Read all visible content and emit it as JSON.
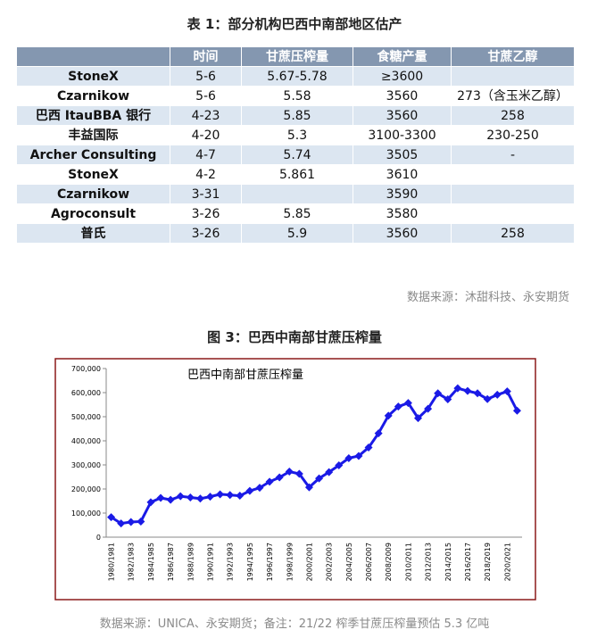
{
  "table_title": "表 1：部分机构巴西中南部地区估产",
  "table": {
    "header": [
      null,
      "时间",
      "甘蔗压榨量",
      "食糖产量",
      "甘蔗乙醇"
    ],
    "rows": [
      [
        "StoneX",
        "5-6",
        "5.67-5.78",
        "≥3600",
        null
      ],
      [
        "Czarnikow",
        "5-6",
        "5.58",
        "3560",
        "273（含玉米乙醇）"
      ],
      [
        "巴西 ItauBBA 银行",
        "4-23",
        "5.85",
        "3560",
        "258"
      ],
      [
        "丰益国际",
        "4-20",
        "5.3",
        "3100-3300",
        "230-250"
      ],
      [
        "Archer Consulting",
        "4-7",
        "5.74",
        "3505",
        "-"
      ],
      [
        "StoneX",
        "4-2",
        "5.861",
        "3610",
        null
      ],
      [
        "Czarnikow",
        "3-31",
        null,
        "3590",
        null
      ],
      [
        "Agroconsult",
        "3-26",
        "5.85",
        "3580",
        null
      ],
      [
        "普氏",
        "3-26",
        "5.9",
        "3560",
        "258"
      ]
    ]
  },
  "table_source": "数据来源：沐甜科技、永安期货",
  "figure_title": "图 3：巴西中南部甘蔗压榨量",
  "chart_data": {
    "type": "line",
    "title": "巴西中南部甘蔗压榨量",
    "categories": [
      "1980/1981",
      null,
      "1982/1983",
      null,
      "1984/1985",
      null,
      "1986/1987",
      null,
      "1988/1989",
      null,
      "1990/1991",
      null,
      "1992/1993",
      null,
      "1994/1995",
      null,
      "1996/1997",
      null,
      "1998/1999",
      null,
      "2000/2001",
      null,
      "2002/2003",
      null,
      "2004/2005",
      null,
      "2006/2007",
      null,
      "2008/2009",
      null,
      "2010/2011",
      null,
      "2012/2013",
      null,
      "2014/2015",
      null,
      "2016/2017",
      null,
      "2018/2019",
      null,
      "2020/2021",
      null
    ],
    "series": [
      {
        "name": "巴西中南部甘蔗压榨量",
        "color": "#1a1ae6",
        "values": [
          83000,
          57000,
          63000,
          65000,
          145000,
          163000,
          155000,
          170000,
          165000,
          160000,
          168000,
          178000,
          175000,
          172000,
          192000,
          205000,
          230000,
          248000,
          272000,
          263000,
          207000,
          244000,
          270000,
          298000,
          328000,
          337000,
          372000,
          431000,
          504000,
          542000,
          557000,
          494000,
          533000,
          597000,
          572000,
          618000,
          607000,
          597000,
          573000,
          591000,
          605000,
          525000
        ]
      }
    ],
    "ylim": [
      0,
      700000
    ],
    "yticks": [
      0,
      {
        "value": 100000,
        "label": "100,000"
      },
      {
        "value": 200000,
        "label": "200,000"
      },
      {
        "value": 300000,
        "label": "300,000"
      },
      {
        "value": 400000,
        "label": "400,000"
      },
      {
        "value": 500000,
        "label": "500,000"
      },
      {
        "value": 600000,
        "label": "600,000"
      },
      {
        "value": 700000,
        "label": "700,000"
      }
    ],
    "grid": false
  },
  "chart_source": "数据来源：UNICA、永安期货；备注：21/22 榨季甘蔗压榨量预估 5.3 亿吨"
}
